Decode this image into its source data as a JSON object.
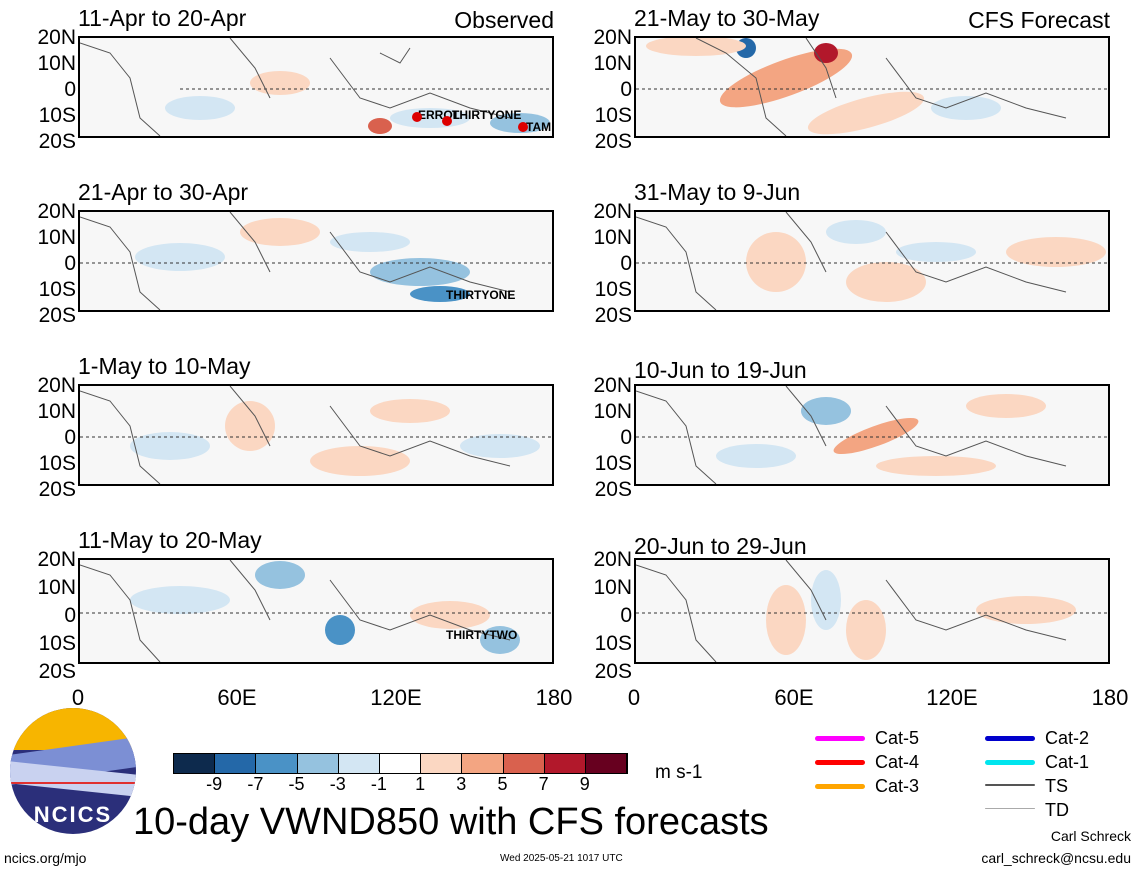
{
  "header": {
    "observed_label": "Observed",
    "forecast_label": "CFS Forecast"
  },
  "latitude_labels": [
    "20N",
    "10N",
    "0",
    "10S",
    "20S"
  ],
  "longitude_labels": [
    "0",
    "60E",
    "120E",
    "180"
  ],
  "panels_observed": [
    {
      "title": "11-Apr to 20-Apr",
      "storms": [
        "ERROL",
        "THIRTYONE",
        "TAM"
      ]
    },
    {
      "title": "21-Apr to 30-Apr",
      "storms": [
        "THIRTYONE"
      ]
    },
    {
      "title": "1-May to 10-May",
      "storms": []
    },
    {
      "title": "11-May to 20-May",
      "storms": [
        "THIRTYTWO"
      ]
    }
  ],
  "panels_forecast": [
    {
      "title": "21-May to 30-May"
    },
    {
      "title": "31-May to 9-Jun"
    },
    {
      "title": "10-Jun to 19-Jun"
    },
    {
      "title": "20-Jun to 29-Jun"
    }
  ],
  "colorbar": {
    "labels": [
      "-9",
      "-7",
      "-5",
      "-3",
      "-1",
      "1",
      "3",
      "5",
      "7",
      "9"
    ],
    "units": "m s-1",
    "colors": [
      "#0d2a4d",
      "#2468a8",
      "#4a92c6",
      "#95c2df",
      "#d3e6f3",
      "#ffffff",
      "#fbd7c2",
      "#f3a582",
      "#d9614e",
      "#b2182b",
      "#67001f"
    ]
  },
  "legend": [
    {
      "label": "Cat-5",
      "color": "#ff00ff"
    },
    {
      "label": "Cat-4",
      "color": "#ff0000"
    },
    {
      "label": "Cat-3",
      "color": "#ffa500"
    },
    {
      "label": "Cat-2",
      "color": "#0000cc"
    },
    {
      "label": "Cat-1",
      "color": "#00e5ee"
    },
    {
      "label": "TS",
      "color": "#555555"
    },
    {
      "label": "TD",
      "color": "#aaaaaa"
    }
  ],
  "logo": {
    "text": "NCICS"
  },
  "main_title": "10-day VWND850 with CFS forecasts",
  "footer": {
    "url": "ncics.org/mjo",
    "timestamp": "Wed 2025-05-21 1017 UTC",
    "author": "Carl Schreck",
    "email": "carl_schreck@ncsu.edu"
  }
}
